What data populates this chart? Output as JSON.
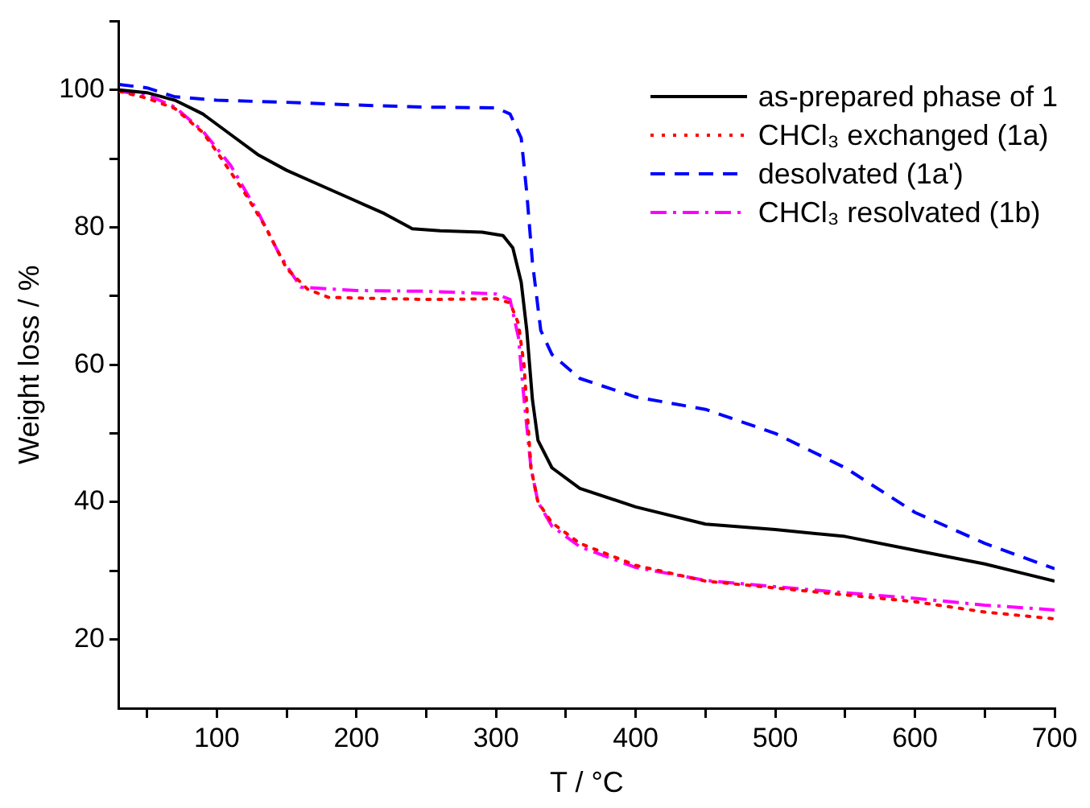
{
  "chart_data": {
    "type": "line",
    "xlabel": "T / °C",
    "ylabel": "Weight loss / %",
    "xlim": [
      30,
      700
    ],
    "xticks": [
      {
        "value": 50,
        "label": null
      },
      100,
      {
        "value": 150,
        "label": null
      },
      200,
      {
        "value": 250,
        "label": null
      },
      300,
      {
        "value": 350,
        "label": null
      },
      400,
      {
        "value": 450,
        "label": null
      },
      500,
      {
        "value": 550,
        "label": null
      },
      600,
      {
        "value": 650,
        "label": null
      },
      700
    ],
    "ylim": [
      10,
      110
    ],
    "yticks": [
      20,
      {
        "value": 30,
        "label": null
      },
      40,
      {
        "value": 50,
        "label": null
      },
      60,
      {
        "value": 70,
        "label": null
      },
      80,
      {
        "value": 90,
        "label": null
      },
      100,
      {
        "value": 110,
        "label": null
      }
    ],
    "grid": false,
    "legend": "top right",
    "series": [
      {
        "name": "as-prepared phase of 1",
        "color": "#000000",
        "line_style": "solid",
        "x": [
          30,
          50,
          70,
          90,
          110,
          130,
          150,
          170,
          200,
          220,
          240,
          260,
          290,
          305,
          312,
          318,
          322,
          326,
          330,
          340,
          360,
          400,
          450,
          500,
          550,
          600,
          650,
          700
        ],
        "values": [
          100,
          99.6,
          98.5,
          96.5,
          93.5,
          90.5,
          88.3,
          86.5,
          83.8,
          82,
          79.8,
          79.5,
          79.3,
          78.8,
          77,
          72,
          65,
          55,
          49,
          45,
          42,
          39.3,
          36.8,
          36,
          35,
          33,
          31,
          28.5
        ]
      },
      {
        "name": "CHCl₃ exchanged (1a)",
        "color": "#ff0000",
        "line_style": "dotted",
        "x": [
          30,
          50,
          70,
          90,
          100,
          120,
          135,
          150,
          165,
          180,
          250,
          300,
          310,
          316,
          320,
          325,
          330,
          340,
          360,
          400,
          450,
          500,
          550,
          600,
          650,
          700
        ],
        "values": [
          99.8,
          98.8,
          97.3,
          93.8,
          91,
          85,
          80,
          74,
          71,
          69.8,
          69.5,
          69.6,
          69,
          66,
          60,
          45,
          40,
          37,
          34,
          30.8,
          28.5,
          27.5,
          26.5,
          25.5,
          24,
          23
        ]
      },
      {
        "name": "desolvated (1a')",
        "color": "#0000ff",
        "line_style": "dashed",
        "x": [
          30,
          50,
          70,
          100,
          150,
          200,
          250,
          300,
          310,
          318,
          322,
          326,
          332,
          340,
          360,
          400,
          450,
          500,
          550,
          600,
          650,
          700
        ],
        "values": [
          100.8,
          100.3,
          99,
          98.5,
          98.2,
          97.8,
          97.5,
          97.4,
          96.5,
          93,
          85,
          75,
          65,
          61.5,
          58,
          55.3,
          53.5,
          50,
          45,
          38.5,
          34,
          30.3
        ]
      },
      {
        "name": "CHCl₃ resolvated (1b)",
        "color": "#ff00ff",
        "line_style": "dashdot",
        "x": [
          30,
          50,
          70,
          90,
          110,
          130,
          145,
          160,
          200,
          250,
          300,
          310,
          316,
          320,
          325,
          330,
          340,
          360,
          400,
          450,
          500,
          550,
          600,
          650,
          700
        ],
        "values": [
          99.8,
          99.3,
          97.5,
          94,
          89,
          82,
          76,
          71.3,
          70.8,
          70.7,
          70.3,
          69.5,
          64,
          55,
          45,
          40,
          36.5,
          33.5,
          30.5,
          28.6,
          27.7,
          26.8,
          26,
          25,
          24.3
        ]
      }
    ]
  }
}
